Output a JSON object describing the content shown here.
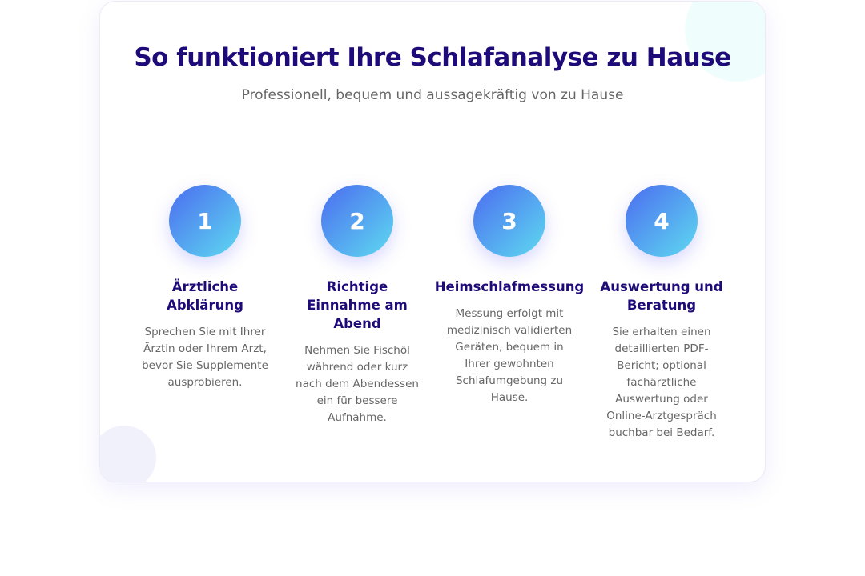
{
  "header": {
    "title": "So funktioniert Ihre Schlafanalyse zu Hause",
    "subtitle": "Professionell, bequem und aussagekräftig von zu Hause"
  },
  "colors": {
    "heading": "#1e0a78",
    "gradient_start": "#4b6cf0",
    "gradient_end": "#5edaf0",
    "body_text": "#666666"
  },
  "steps": [
    {
      "number": "1",
      "title": "Ärztliche Abklärung",
      "text": "Sprechen Sie mit Ihrer Ärztin oder Ihrem Arzt, bevor Sie Supplemente ausprobieren."
    },
    {
      "number": "2",
      "title": "Richtige Einnahme am Abend",
      "text": "Nehmen Sie Fischöl während oder kurz nach dem Abendessen ein für bessere Aufnahme."
    },
    {
      "number": "3",
      "title": "Heimschlafmessung",
      "text": "Messung erfolgt mit medizinisch validierten Geräten, bequem in Ihrer gewohnten Schlafumgebung zu Hause."
    },
    {
      "number": "4",
      "title": "Auswertung und Beratung",
      "text": "Sie erhalten einen detaillierten PDF-Bericht; optional fachärztliche Auswertung oder Online-Arztgespräch buchbar bei Bedarf."
    }
  ]
}
